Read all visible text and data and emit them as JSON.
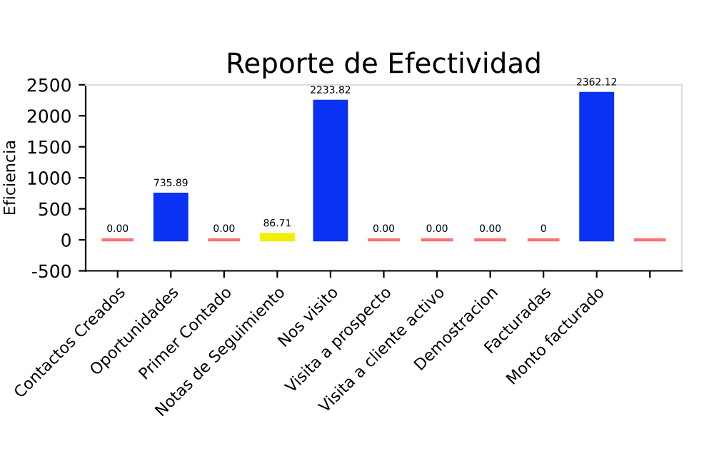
{
  "chart_data": {
    "type": "bar",
    "title": "Reporte de Efectividad",
    "ylabel": "Eficiencia",
    "categories": [
      "Contactos Creados",
      "Oportunidades",
      "Primer Contado",
      "Notas de Seguimiento",
      "Nos visito",
      "Visita a prospecto",
      "Visita a cliente activo",
      "Demostracion",
      "Facturadas",
      "Monto facturado",
      null
    ],
    "values": [
      0,
      735.89,
      0,
      86.71,
      2233.82,
      0,
      0,
      0,
      0,
      2362.12,
      0
    ],
    "value_labels": [
      "0.00",
      "735.89",
      "0.00",
      "86.71",
      "2233.82",
      "0.00",
      "0.00",
      "0.00",
      "0",
      "2362.12",
      null
    ],
    "colors": [
      "#ff7070",
      "#0a32f5",
      "#ff7070",
      "#f0f000",
      "#0a32f5",
      "#ff7070",
      "#ff7070",
      "#ff7070",
      "#ff7070",
      "#0a32f5",
      "#ff7070"
    ],
    "ylim": [
      -500,
      2500
    ],
    "yticks": [
      -500,
      0,
      500,
      1000,
      1500,
      2000,
      2500
    ],
    "grid": false,
    "legend": false
  }
}
